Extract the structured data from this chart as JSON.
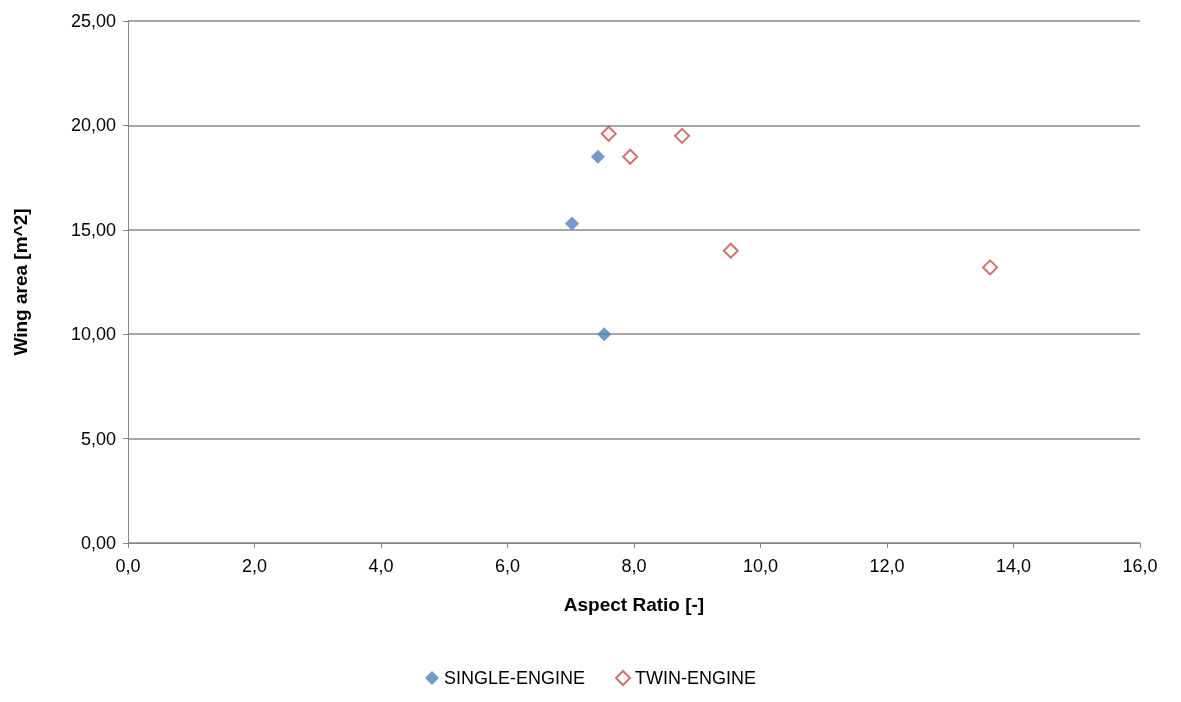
{
  "chart_data": {
    "type": "scatter",
    "xlabel": "Aspect Ratio [-]",
    "ylabel": "Wing area [m^2]",
    "xlim": [
      0,
      16
    ],
    "ylim": [
      0,
      25
    ],
    "xticks": [
      {
        "value": 0,
        "label": "0,0"
      },
      {
        "value": 2,
        "label": "2,0"
      },
      {
        "value": 4,
        "label": "4,0"
      },
      {
        "value": 6,
        "label": "6,0"
      },
      {
        "value": 8,
        "label": "8,0"
      },
      {
        "value": 10,
        "label": "10,0"
      },
      {
        "value": 12,
        "label": "12,0"
      },
      {
        "value": 14,
        "label": "14,0"
      },
      {
        "value": 16,
        "label": "16,0"
      }
    ],
    "yticks": [
      {
        "value": 0,
        "label": "0,00"
      },
      {
        "value": 5,
        "label": "5,00"
      },
      {
        "value": 10,
        "label": "10,00"
      },
      {
        "value": 15,
        "label": "15,00"
      },
      {
        "value": 20,
        "label": "20,00"
      },
      {
        "value": 25,
        "label": "25,00"
      }
    ],
    "grid": "y",
    "legend": "bottom",
    "marker": "diamond",
    "series": [
      {
        "name": "SINGLE-ENGINE",
        "color": "#4f81bd",
        "x": [
          7.43,
          7.02,
          7.53
        ],
        "values": [
          18.5,
          15.3,
          10.0
        ]
      },
      {
        "name": "TWIN-ENGINE",
        "color": "#c0504d",
        "x": [
          7.6,
          7.94,
          8.76,
          9.53,
          13.63
        ],
        "values": [
          19.6,
          18.5,
          19.5,
          14.0,
          13.2
        ]
      }
    ]
  }
}
